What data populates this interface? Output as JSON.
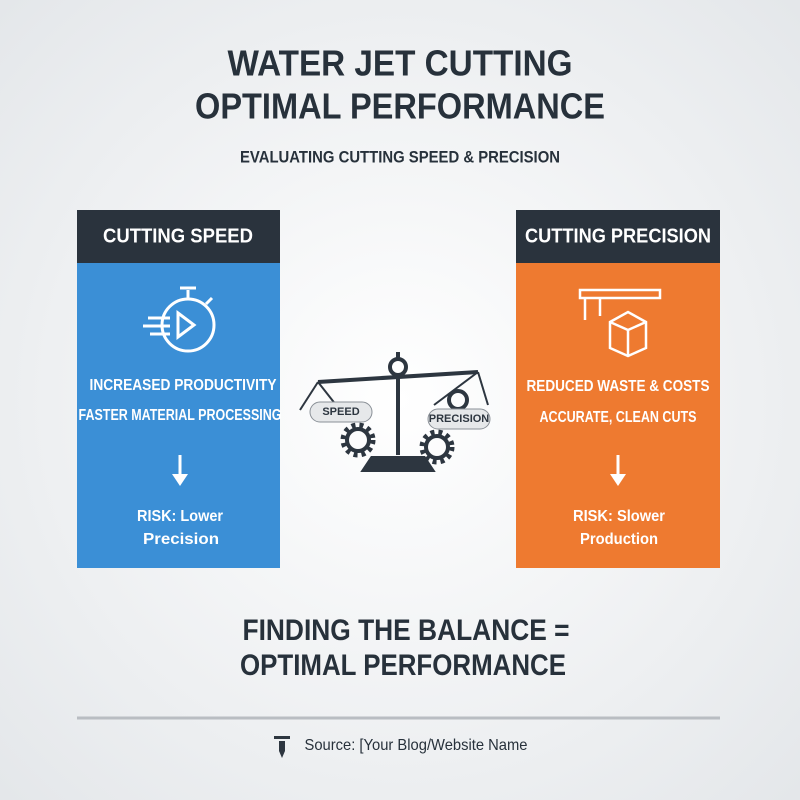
{
  "header": {
    "title_lines": [
      "WATER JET CUTTING",
      "OPTIMAL PERFORMANCE"
    ],
    "subtitle": "EVALUATING CUTTING SPEED & PRECISION"
  },
  "panels": [
    {
      "title": "CUTTING SPEED",
      "benefits": [
        "INCREASED PRODUCTIVITY",
        "FASTER MATERIAL PROCESSING"
      ],
      "risk_lines": [
        "RISK: Lower",
        "Precision"
      ]
    },
    {
      "title": "CUTTING PRECISION",
      "benefits": [
        "REDUCED WASTE & COSTS",
        "ACCURATE, CLEAN CUTS"
      ],
      "risk_lines": [
        "RISK: Slower",
        "Production"
      ]
    }
  ],
  "scale": {
    "left_label": "SPEED",
    "right_label": "PRECISION"
  },
  "conclusion_lines": [
    "FINDING THE BALANCE =",
    "OPTIMAL PERFORMANCE"
  ],
  "footer": {
    "source": "Source: [Your Blog/Website Name"
  }
}
